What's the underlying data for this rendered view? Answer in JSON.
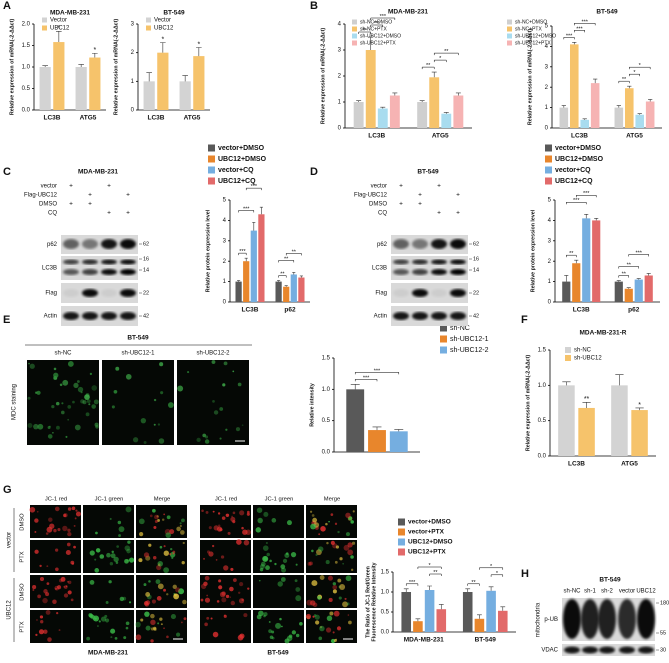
{
  "panel_letters": [
    "A",
    "B",
    "C",
    "D",
    "E",
    "F",
    "G",
    "H"
  ],
  "chart_data": [
    {
      "type": "bar",
      "title": "MDA-MB-231",
      "y_label": "Relative expression of mRNA(-2-ΔΔct)",
      "categories": [
        "LC3B",
        "ATG5"
      ],
      "series": [
        {
          "name": "Vector",
          "color": "#d3d3d3",
          "values": [
            1.0,
            1.0
          ],
          "errors": [
            0.03,
            0.06
          ]
        },
        {
          "name": "UBC12",
          "color": "#f6c36b",
          "values": [
            1.58,
            1.22
          ],
          "errors": [
            0.25,
            0.1
          ],
          "stars": [
            "*",
            "*"
          ]
        }
      ],
      "ylim": [
        0,
        2
      ],
      "yticks": [
        {
          "value": 0,
          "label": "0.0"
        },
        0.5,
        {
          "value": 1,
          "label": "1.0"
        },
        1.5,
        {
          "value": 2,
          "label": "2.0"
        }
      ],
      "legend": "top-left"
    },
    {
      "type": "bar",
      "title": "BT-549",
      "y_label": "Relative expression of mRNA(-2-ΔΔct)",
      "categories": [
        "LC3B",
        "ATG5"
      ],
      "series": [
        {
          "name": "Vector",
          "color": "#d3d3d3",
          "values": [
            1.0,
            1.0
          ],
          "errors": [
            0.3,
            0.2
          ]
        },
        {
          "name": "UBC12",
          "color": "#f6c36b",
          "values": [
            2.0,
            1.88
          ],
          "errors": [
            0.35,
            0.3
          ],
          "stars": [
            "*",
            "*"
          ]
        }
      ],
      "ylim": [
        0,
        3
      ],
      "yticks": [
        0,
        1,
        2,
        3
      ],
      "legend": "top-left"
    },
    {
      "type": "bar",
      "title": "MDA-MB-231",
      "y_label": "Relative expression of mRNA(-2-ΔΔct)",
      "categories": [
        "LC3B",
        "ATG5"
      ],
      "series": [
        {
          "name": "sh-NC+DMSO",
          "color": "#cfcfcf",
          "values": [
            1.0,
            1.0
          ],
          "errors": [
            0.05,
            0.05
          ]
        },
        {
          "name": "sh-NC+PTX",
          "color": "#f6c36b",
          "values": [
            3.0,
            1.95
          ],
          "errors": [
            0.5,
            0.2
          ]
        },
        {
          "name": "sh-UBC12+DMSO",
          "color": "#a9dcef",
          "values": [
            0.75,
            0.55
          ],
          "errors": [
            0.05,
            0.05
          ]
        },
        {
          "name": "sh-UBC12+PTX",
          "color": "#f6b3b3",
          "values": [
            1.25,
            1.25
          ],
          "errors": [
            0.1,
            0.1
          ]
        }
      ],
      "comparisons": [
        {
          "text": "**",
          "category": 0,
          "between": [
            0,
            1
          ]
        },
        {
          "text": "***",
          "category": 0,
          "between": [
            1,
            2
          ]
        },
        {
          "text": "***",
          "category": 0,
          "between": [
            1,
            3
          ]
        },
        {
          "text": "**",
          "category": 1,
          "between": [
            0,
            1
          ]
        },
        {
          "text": "*",
          "category": 1,
          "between": [
            1,
            2
          ]
        },
        {
          "text": "**",
          "category": 1,
          "between": [
            1,
            3
          ]
        }
      ],
      "ylim": [
        0,
        4
      ],
      "yticks": [
        0,
        1,
        2,
        3,
        4
      ],
      "legend": "top-left"
    },
    {
      "type": "bar",
      "title": "BT-549",
      "y_label": "Relative expression of mRNA(-2-ΔΔct)",
      "categories": [
        "LC3B",
        "ATG5"
      ],
      "series": [
        {
          "name": "sh-NC+DMSO",
          "color": "#cfcfcf",
          "values": [
            1.0,
            1.0
          ],
          "errors": [
            0.1,
            0.1
          ]
        },
        {
          "name": "sh-NC+PTX",
          "color": "#f6c36b",
          "values": [
            4.1,
            1.95
          ],
          "errors": [
            0.1,
            0.1
          ]
        },
        {
          "name": "sh-UBC12+DMSO",
          "color": "#a9dcef",
          "values": [
            0.4,
            0.65
          ],
          "errors": [
            0.05,
            0.05
          ]
        },
        {
          "name": "sh-UBC12+PTX",
          "color": "#f6b3b3",
          "values": [
            2.2,
            1.3
          ],
          "errors": [
            0.2,
            0.1
          ]
        }
      ],
      "comparisons": [
        {
          "text": "***",
          "category": 0,
          "between": [
            0,
            1
          ]
        },
        {
          "text": "***",
          "category": 0,
          "between": [
            1,
            2
          ]
        },
        {
          "text": "***",
          "category": 0,
          "between": [
            1,
            3
          ]
        },
        {
          "text": "**",
          "category": 1,
          "between": [
            0,
            1
          ]
        },
        {
          "text": "*",
          "category": 1,
          "between": [
            1,
            2
          ]
        },
        {
          "text": "*",
          "category": 1,
          "between": [
            1,
            3
          ]
        }
      ],
      "ylim": [
        0,
        5
      ],
      "yticks": [
        0,
        1,
        2,
        3,
        4,
        5
      ],
      "legend": "top-left"
    },
    {
      "type": "bar",
      "y_label": "Relative protein expression level",
      "categories": [
        "LC3B",
        "p62"
      ],
      "series": [
        {
          "name": "vector+DMSO",
          "color": "#595959",
          "values": [
            1.0,
            1.0
          ],
          "errors": [
            0.05,
            0.05
          ]
        },
        {
          "name": "UBC12+DMSO",
          "color": "#e8862c",
          "values": [
            2.0,
            0.75
          ],
          "errors": [
            0.15,
            0.05
          ]
        },
        {
          "name": "vector+CQ",
          "color": "#75aee0",
          "values": [
            3.5,
            1.35
          ],
          "errors": [
            0.4,
            0.1
          ]
        },
        {
          "name": "UBC12+CQ",
          "color": "#e26a6a",
          "values": [
            4.3,
            1.2
          ],
          "errors": [
            0.35,
            0.08
          ]
        }
      ],
      "comparisons": [
        {
          "text": "***",
          "category": 0,
          "between": [
            0,
            1
          ]
        },
        {
          "text": "***",
          "category": 0,
          "between": [
            0,
            2
          ]
        },
        {
          "text": "***",
          "category": 0,
          "between": [
            1,
            3
          ]
        },
        {
          "text": "**",
          "category": 1,
          "between": [
            0,
            1
          ]
        },
        {
          "text": "**",
          "category": 1,
          "between": [
            0,
            2
          ]
        },
        {
          "text": "**",
          "category": 1,
          "between": [
            1,
            3
          ]
        }
      ],
      "ylim": [
        0,
        5
      ],
      "yticks": [
        0,
        1,
        2,
        3,
        4,
        5
      ],
      "legend": "top"
    },
    {
      "type": "bar",
      "y_label": "Relative protein expression level",
      "categories": [
        "LC3B",
        "p62"
      ],
      "series": [
        {
          "name": "vector+DMSO",
          "color": "#595959",
          "values": [
            1.0,
            1.0
          ],
          "errors": [
            0.3,
            0.05
          ]
        },
        {
          "name": "UBC12+DMSO",
          "color": "#e8862c",
          "values": [
            1.9,
            0.65
          ],
          "errors": [
            0.15,
            0.05
          ]
        },
        {
          "name": "vector+CQ",
          "color": "#75aee0",
          "values": [
            4.1,
            1.1
          ],
          "errors": [
            0.2,
            0.05
          ]
        },
        {
          "name": "UBC12+CQ",
          "color": "#e26a6a",
          "values": [
            4.0,
            1.3
          ],
          "errors": [
            0.1,
            0.1
          ]
        }
      ],
      "comparisons": [
        {
          "text": "**",
          "category": 0,
          "between": [
            0,
            1
          ]
        },
        {
          "text": "***",
          "category": 0,
          "between": [
            0,
            2
          ]
        },
        {
          "text": "***",
          "category": 0,
          "between": [
            1,
            3
          ]
        },
        {
          "text": "**",
          "category": 1,
          "between": [
            0,
            1
          ]
        },
        {
          "text": "**",
          "category": 1,
          "between": [
            0,
            2
          ]
        },
        {
          "text": "***",
          "category": 1,
          "between": [
            1,
            3
          ]
        }
      ],
      "ylim": [
        0,
        5
      ],
      "yticks": [
        0,
        1,
        2,
        3,
        4,
        5
      ],
      "legend": "top"
    },
    {
      "type": "bar",
      "y_label": "Relative intensity",
      "categories": [
        null
      ],
      "series": [
        {
          "name": "sh-NC",
          "color": "#595959",
          "values": [
            1.0
          ],
          "errors": [
            0.08
          ]
        },
        {
          "name": "sh-UBC12-1",
          "color": "#e8862c",
          "values": [
            0.35
          ],
          "errors": [
            0.05
          ]
        },
        {
          "name": "sh-UBC12-2",
          "color": "#75aee0",
          "values": [
            0.33
          ],
          "errors": [
            0.03
          ]
        }
      ],
      "comparisons": [
        {
          "text": "***",
          "category": 0,
          "between": [
            0,
            1
          ]
        },
        {
          "text": "***",
          "category": 0,
          "between": [
            0,
            2
          ]
        }
      ],
      "ylim": [
        0,
        1.5
      ],
      "yticks": [
        {
          "value": 0,
          "label": "0.0"
        },
        0.5,
        {
          "value": 1,
          "label": "1.0"
        },
        1.5
      ],
      "legend": "right"
    },
    {
      "type": "bar",
      "title": "MDA-MB-231-R",
      "y_label": "Relative expression of mRNA(-2-ΔΔct)",
      "categories": [
        "LC3B",
        "ATG5"
      ],
      "series": [
        {
          "name": "sh-NC",
          "color": "#d3d3d3",
          "values": [
            1.0,
            1.0
          ],
          "errors": [
            0.05,
            0.15
          ]
        },
        {
          "name": "sh-UBC12",
          "color": "#f6c36b",
          "values": [
            0.68,
            0.65
          ],
          "errors": [
            0.08,
            0.03
          ],
          "stars": [
            "**",
            "*"
          ]
        }
      ],
      "ylim": [
        0,
        1.5
      ],
      "yticks": [
        {
          "value": 0,
          "label": "0.0"
        },
        0.5,
        {
          "value": 1,
          "label": "1.0"
        },
        1.5
      ],
      "legend": "top-left"
    },
    {
      "type": "bar",
      "y_label": [
        "The Ratio of JC-1 Red/Green",
        "Fluorescence Relative Intensity"
      ],
      "categories": [
        "MDA-MB-231",
        "BT-549"
      ],
      "series": [
        {
          "name": "vector+DMSO",
          "color": "#595959",
          "values": [
            1.0,
            1.0
          ],
          "errors": [
            0.08,
            0.08
          ]
        },
        {
          "name": "vector+PTX",
          "color": "#e8862c",
          "values": [
            0.27,
            0.33
          ],
          "errors": [
            0.06,
            0.1
          ]
        },
        {
          "name": "UBC12+DMSO",
          "color": "#75aee0",
          "values": [
            1.05,
            1.03
          ],
          "errors": [
            0.1,
            0.1
          ]
        },
        {
          "name": "UBC12+PTX",
          "color": "#e26a6a",
          "values": [
            0.57,
            0.53
          ],
          "errors": [
            0.12,
            0.1
          ]
        }
      ],
      "comparisons": [
        {
          "text": "***",
          "category": 0,
          "between": [
            0,
            1
          ]
        },
        {
          "text": "**",
          "category": 0,
          "between": [
            2,
            3
          ]
        },
        {
          "text": "*",
          "category": 0,
          "between": [
            1,
            3
          ]
        },
        {
          "text": "**",
          "category": 1,
          "between": [
            0,
            1
          ]
        },
        {
          "text": "*",
          "category": 1,
          "between": [
            2,
            3
          ]
        },
        {
          "text": "*",
          "category": 1,
          "between": [
            1,
            3
          ]
        }
      ],
      "ylim": [
        0,
        1.5
      ],
      "yticks": [
        {
          "value": 0,
          "label": "0.0"
        },
        0.5,
        {
          "value": 1,
          "label": "1.0"
        },
        1.5
      ],
      "legend": "top"
    }
  ],
  "blots": [
    {
      "title": "MDA-MB-231",
      "treatments": [
        {
          "name": "vector",
          "signs": [
            "+",
            null,
            "+",
            null
          ]
        },
        {
          "name": "Flag-UBC12",
          "signs": [
            null,
            "+",
            null,
            "+"
          ]
        },
        {
          "name": "DMSO",
          "signs": [
            "+",
            "+",
            null,
            null
          ]
        },
        {
          "name": "CQ",
          "signs": [
            null,
            null,
            "+",
            "+"
          ]
        }
      ],
      "bands": [
        "p62",
        "LC3B",
        "Flag",
        "Actin"
      ],
      "markers": [
        "62",
        "16",
        "14",
        "22",
        "42"
      ]
    },
    {
      "title": "BT-549",
      "treatments": [
        {
          "name": "vector",
          "signs": [
            "+",
            null,
            "+",
            null
          ]
        },
        {
          "name": "Flag-UBC12",
          "signs": [
            null,
            "+",
            null,
            "+"
          ]
        },
        {
          "name": "DMSO",
          "signs": [
            "+",
            "+",
            null,
            null
          ]
        },
        {
          "name": "CQ",
          "signs": [
            null,
            null,
            "+",
            "+"
          ]
        }
      ],
      "bands": [
        "p62",
        "LC3B",
        "Flag",
        "Actin"
      ],
      "markers": [
        "62",
        "16",
        "14",
        "22",
        "42"
      ]
    },
    {
      "title": "BT-549",
      "lanes": [
        "sh-NC",
        "sh-1",
        "sh-2",
        "vector",
        "UBC12"
      ],
      "bands": [
        "p-UB",
        "VDAC"
      ],
      "markers": [
        "180",
        "55",
        "30"
      ],
      "fraction": "mitochondria"
    }
  ],
  "mdc": {
    "title": "BT-549",
    "stain": "MDC staining",
    "columns": [
      "sh-NC",
      "sh-UBC12-1",
      "sh-UBC12-2"
    ]
  },
  "jc1": {
    "channels": [
      "JC-1 red",
      "JC-1 green",
      "Merge"
    ],
    "groups": [
      "vector",
      "UBC12"
    ],
    "treatments": [
      "DMSO",
      "PTX"
    ],
    "cells": [
      "MDA-MB-231",
      "BT-549"
    ]
  }
}
